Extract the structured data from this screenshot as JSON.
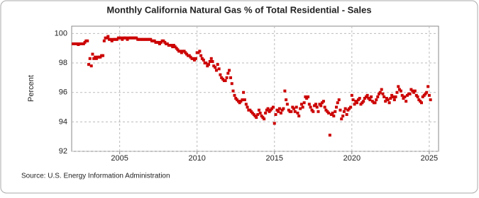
{
  "chart_data": {
    "type": "scatter",
    "title": "Monthly California Natural Gas % of Total Residential - Sales",
    "y_label": "Percent",
    "source": "Source: U.S. Energy Information Administration",
    "color": "#cc0000",
    "grid": true,
    "xlim": [
      2001.9,
      2025.6
    ],
    "xticks": [
      2005,
      2010,
      2015,
      2020,
      2025
    ],
    "ylim": [
      92,
      100.5
    ],
    "yticks": [
      92,
      94,
      96,
      98,
      100
    ],
    "x": [
      2002.0,
      2002.08,
      2002.17,
      2002.25,
      2002.33,
      2002.42,
      2002.5,
      2002.58,
      2002.67,
      2002.75,
      2002.83,
      2002.92,
      2003.0,
      2003.08,
      2003.17,
      2003.25,
      2003.33,
      2003.42,
      2003.5,
      2003.58,
      2003.67,
      2003.75,
      2003.83,
      2003.92,
      2004.0,
      2004.08,
      2004.17,
      2004.25,
      2004.33,
      2004.42,
      2004.5,
      2004.58,
      2004.67,
      2004.75,
      2004.83,
      2004.92,
      2005.0,
      2005.08,
      2005.17,
      2005.25,
      2005.33,
      2005.42,
      2005.5,
      2005.58,
      2005.67,
      2005.75,
      2005.83,
      2005.92,
      2006.0,
      2006.08,
      2006.17,
      2006.25,
      2006.33,
      2006.42,
      2006.5,
      2006.58,
      2006.67,
      2006.75,
      2006.83,
      2006.92,
      2007.0,
      2007.08,
      2007.17,
      2007.25,
      2007.33,
      2007.42,
      2007.5,
      2007.58,
      2007.67,
      2007.75,
      2007.83,
      2007.92,
      2008.0,
      2008.08,
      2008.17,
      2008.25,
      2008.33,
      2008.42,
      2008.5,
      2008.58,
      2008.67,
      2008.75,
      2008.83,
      2008.92,
      2009.0,
      2009.08,
      2009.17,
      2009.25,
      2009.33,
      2009.42,
      2009.5,
      2009.58,
      2009.67,
      2009.75,
      2009.83,
      2009.92,
      2010.0,
      2010.08,
      2010.17,
      2010.25,
      2010.33,
      2010.42,
      2010.5,
      2010.58,
      2010.67,
      2010.75,
      2010.83,
      2010.92,
      2011.0,
      2011.08,
      2011.17,
      2011.25,
      2011.33,
      2011.42,
      2011.5,
      2011.58,
      2011.67,
      2011.75,
      2011.83,
      2011.92,
      2012.0,
      2012.08,
      2012.17,
      2012.25,
      2012.33,
      2012.42,
      2012.5,
      2012.58,
      2012.67,
      2012.75,
      2012.83,
      2012.92,
      2013.0,
      2013.08,
      2013.17,
      2013.25,
      2013.33,
      2013.42,
      2013.5,
      2013.58,
      2013.67,
      2013.75,
      2013.83,
      2013.92,
      2014.0,
      2014.08,
      2014.17,
      2014.25,
      2014.33,
      2014.42,
      2014.5,
      2014.58,
      2014.67,
      2014.75,
      2014.83,
      2014.92,
      2015.0,
      2015.08,
      2015.17,
      2015.25,
      2015.33,
      2015.42,
      2015.5,
      2015.58,
      2015.67,
      2015.75,
      2015.83,
      2015.92,
      2016.0,
      2016.08,
      2016.17,
      2016.25,
      2016.33,
      2016.42,
      2016.5,
      2016.58,
      2016.67,
      2016.75,
      2016.83,
      2016.92,
      2017.0,
      2017.08,
      2017.17,
      2017.25,
      2017.33,
      2017.42,
      2017.5,
      2017.58,
      2017.67,
      2017.75,
      2017.83,
      2017.92,
      2018.0,
      2018.08,
      2018.17,
      2018.25,
      2018.33,
      2018.42,
      2018.5,
      2018.58,
      2018.67,
      2018.75,
      2018.83,
      2018.92,
      2019.0,
      2019.08,
      2019.17,
      2019.25,
      2019.33,
      2019.42,
      2019.5,
      2019.58,
      2019.67,
      2019.75,
      2019.83,
      2019.92,
      2020.0,
      2020.08,
      2020.17,
      2020.25,
      2020.33,
      2020.42,
      2020.5,
      2020.58,
      2020.67,
      2020.75,
      2020.83,
      2020.92,
      2021.0,
      2021.08,
      2021.17,
      2021.25,
      2021.33,
      2021.42,
      2021.5,
      2021.58,
      2021.67,
      2021.75,
      2021.83,
      2021.92,
      2022.0,
      2022.08,
      2022.17,
      2022.25,
      2022.33,
      2022.42,
      2022.5,
      2022.58,
      2022.67,
      2022.75,
      2022.83,
      2022.92,
      2023.0,
      2023.08,
      2023.17,
      2023.25,
      2023.33,
      2023.42,
      2023.5,
      2023.58,
      2023.67,
      2023.75,
      2023.83,
      2023.92,
      2024.0,
      2024.08,
      2024.17,
      2024.25,
      2024.33,
      2024.42,
      2024.5,
      2024.58,
      2024.67,
      2024.75,
      2024.83,
      2024.92,
      2025.0,
      2025.08
    ],
    "values": [
      99.3,
      99.3,
      99.3,
      99.3,
      99.25,
      99.3,
      99.3,
      99.3,
      99.3,
      99.4,
      99.5,
      99.5,
      97.9,
      98.3,
      97.8,
      98.6,
      98.3,
      98.4,
      98.3,
      98.4,
      98.4,
      98.4,
      98.5,
      98.5,
      99.5,
      99.7,
      99.7,
      99.8,
      99.6,
      99.6,
      99.5,
      99.6,
      99.6,
      99.6,
      99.6,
      99.7,
      99.7,
      99.7,
      99.6,
      99.7,
      99.7,
      99.7,
      99.6,
      99.7,
      99.7,
      99.7,
      99.7,
      99.7,
      99.7,
      99.7,
      99.6,
      99.6,
      99.6,
      99.6,
      99.6,
      99.6,
      99.6,
      99.6,
      99.6,
      99.6,
      99.6,
      99.5,
      99.5,
      99.5,
      99.4,
      99.4,
      99.4,
      99.3,
      99.4,
      99.5,
      99.5,
      99.4,
      99.3,
      99.3,
      99.2,
      99.2,
      99.2,
      99.1,
      99.2,
      99.1,
      99.0,
      98.9,
      98.8,
      98.8,
      98.7,
      98.8,
      98.8,
      98.7,
      98.6,
      98.5,
      98.5,
      98.4,
      98.3,
      98.3,
      98.2,
      98.3,
      98.7,
      98.7,
      98.8,
      98.5,
      98.3,
      98.2,
      98.0,
      98.0,
      97.8,
      97.9,
      98.1,
      98.3,
      98.1,
      97.8,
      97.7,
      97.5,
      97.9,
      97.6,
      97.2,
      97.0,
      96.9,
      96.8,
      96.8,
      97.0,
      97.3,
      97.5,
      97.0,
      96.6,
      96.1,
      95.8,
      95.6,
      95.5,
      95.4,
      95.3,
      95.4,
      95.5,
      96.0,
      95.5,
      95.2,
      95.0,
      94.8,
      94.8,
      94.7,
      94.6,
      94.5,
      94.4,
      94.3,
      94.5,
      94.8,
      94.6,
      94.4,
      94.3,
      94.2,
      94.6,
      94.8,
      94.9,
      94.7,
      94.8,
      94.9,
      95.0,
      93.9,
      94.5,
      94.8,
      94.7,
      94.9,
      94.6,
      94.8,
      94.9,
      96.1,
      95.5,
      95.2,
      94.8,
      94.7,
      94.7,
      95.0,
      94.9,
      94.7,
      95.0,
      94.6,
      94.4,
      94.9,
      95.2,
      95.0,
      95.3,
      95.7,
      95.6,
      95.7,
      95.2,
      95.0,
      94.8,
      94.7,
      95.1,
      95.2,
      95.0,
      94.7,
      95.2,
      95.1,
      95.3,
      95.4,
      95.0,
      94.8,
      94.7,
      94.6,
      93.1,
      94.5,
      94.6,
      94.4,
      94.7,
      95.0,
      95.3,
      95.5,
      94.8,
      94.2,
      94.4,
      94.7,
      94.9,
      94.5,
      94.8,
      94.9,
      95.0,
      95.8,
      95.5,
      95.2,
      95.4,
      95.3,
      95.5,
      95.6,
      95.2,
      95.3,
      95.4,
      95.6,
      95.7,
      95.8,
      95.6,
      95.5,
      95.7,
      95.4,
      95.3,
      95.3,
      95.5,
      95.7,
      95.9,
      96.0,
      96.2,
      95.9,
      95.7,
      95.4,
      95.6,
      95.5,
      95.3,
      95.6,
      95.8,
      95.7,
      95.5,
      95.7,
      96.0,
      96.4,
      96.2,
      96.1,
      95.8,
      95.6,
      95.7,
      95.4,
      95.8,
      95.9,
      95.9,
      96.2,
      96.1,
      96.0,
      96.1,
      95.8,
      95.7,
      95.5,
      95.4,
      95.3,
      95.7,
      95.8,
      95.9,
      96.0,
      96.4,
      95.8,
      95.5
    ]
  }
}
